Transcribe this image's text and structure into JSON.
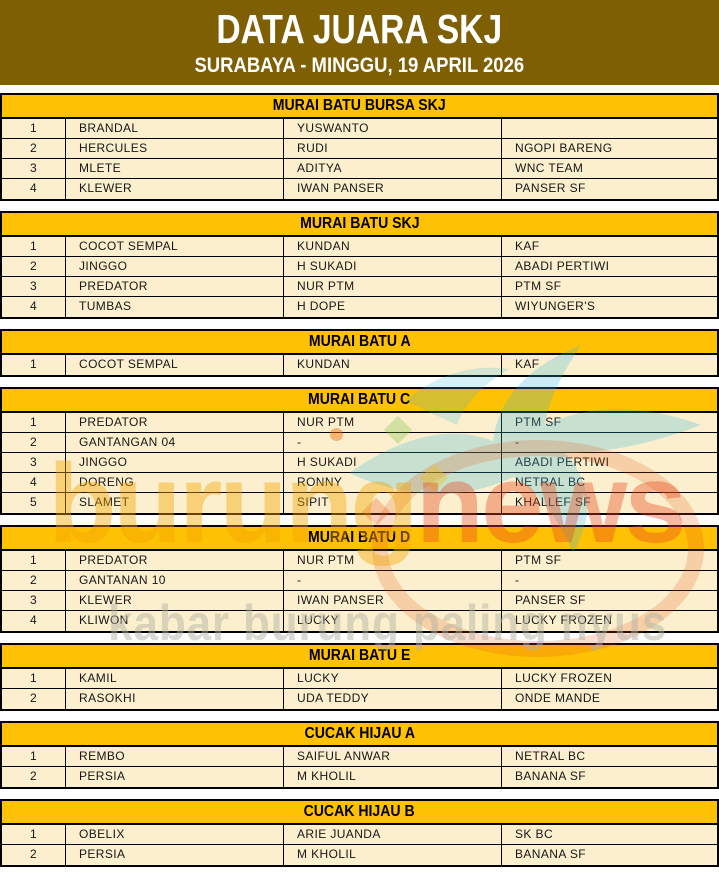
{
  "header": {
    "title": "DATA JUARA SKJ",
    "subtitle": "SURABAYA - MINGGU, 19 APRIL 2026"
  },
  "watermark": {
    "brand_part1": "burung",
    "brand_part2": "news",
    "tagline": "kabar burung paling nyus",
    "bird_icon": "dove-icon",
    "bird_color": "#35B6D9",
    "brand_color1": "#F0A400",
    "brand_color2": "#E8481C"
  },
  "colors": {
    "masthead_bg": "#7E5F04",
    "section_header_bg": "#FFC104",
    "row_bg": "#FBEFCE",
    "border": "#000000"
  },
  "sections": [
    {
      "title": "MURAI BATU BURSA SKJ",
      "rows": [
        [
          "1",
          "BRANDAL",
          "YUSWANTO",
          ""
        ],
        [
          "2",
          "HERCULES",
          "RUDI",
          "NGOPI BARENG"
        ],
        [
          "3",
          "MLETE",
          "ADITYA",
          "WNC TEAM"
        ],
        [
          "4",
          "KLEWER",
          "IWAN PANSER",
          "PANSER SF"
        ]
      ]
    },
    {
      "title": "MURAI BATU SKJ",
      "rows": [
        [
          "1",
          "COCOT SEMPAL",
          "KUNDAN",
          "KAF"
        ],
        [
          "2",
          "JINGGO",
          "H SUKADI",
          "ABADI PERTIWI"
        ],
        [
          "3",
          "PREDATOR",
          "NUR PTM",
          "PTM SF"
        ],
        [
          "4",
          "TUMBAS",
          "H DOPE",
          "WIYUNGER'S"
        ]
      ]
    },
    {
      "title": "MURAI BATU A",
      "rows": [
        [
          "1",
          "COCOT SEMPAL",
          "KUNDAN",
          "KAF"
        ]
      ]
    },
    {
      "title": "MURAI BATU C",
      "rows": [
        [
          "1",
          "PREDATOR",
          "NUR PTM",
          "PTM SF"
        ],
        [
          "2",
          "GANTANGAN 04",
          "-",
          "-"
        ],
        [
          "3",
          "JINGGO",
          "H SUKADI",
          "ABADI PERTIWI"
        ],
        [
          "4",
          "DORENG",
          "RONNY",
          "NETRAL BC"
        ],
        [
          "5",
          "SLAMET",
          "SIPIT",
          "KHALLEF SF"
        ]
      ]
    },
    {
      "title": "MURAI BATU D",
      "rows": [
        [
          "1",
          "PREDATOR",
          "NUR PTM",
          "PTM SF"
        ],
        [
          "2",
          "GANTANAN 10",
          "-",
          "-"
        ],
        [
          "3",
          "KLEWER",
          "IWAN PANSER",
          "PANSER SF"
        ],
        [
          "4",
          "KLIWON",
          "LUCKY",
          "LUCKY FROZEN"
        ]
      ]
    },
    {
      "title": "MURAI BATU E",
      "rows": [
        [
          "1",
          "KAMIL",
          "LUCKY",
          "LUCKY FROZEN"
        ],
        [
          "2",
          "RASOKHI",
          "UDA TEDDY",
          "ONDE MANDE"
        ]
      ]
    },
    {
      "title": "CUCAK HIJAU A",
      "rows": [
        [
          "1",
          "REMBO",
          "SAIFUL ANWAR",
          "NETRAL BC"
        ],
        [
          "2",
          "PERSIA",
          "M KHOLIL",
          "BANANA SF"
        ]
      ]
    },
    {
      "title": "CUCAK HIJAU B",
      "rows": [
        [
          "1",
          "OBELIX",
          "ARIE JUANDA",
          "SK BC"
        ],
        [
          "2",
          "PERSIA",
          "M KHOLIL",
          "BANANA SF"
        ]
      ]
    }
  ]
}
